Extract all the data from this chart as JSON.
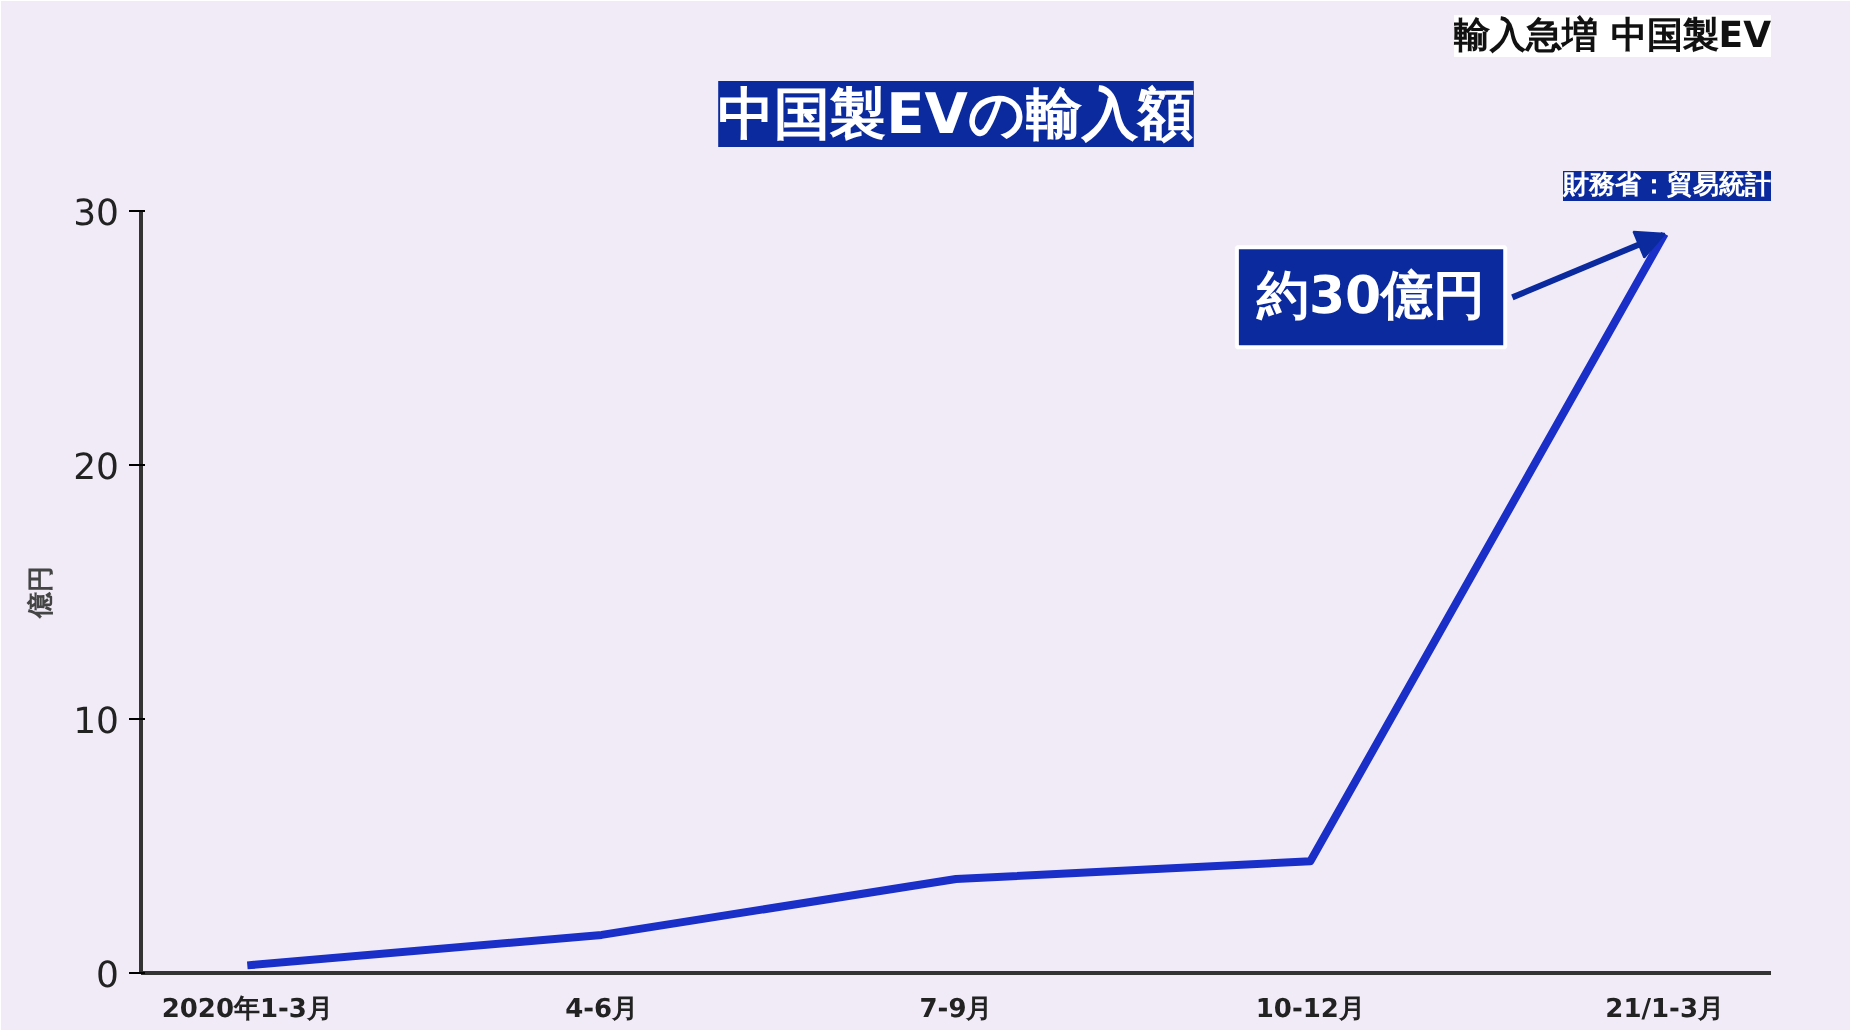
{
  "chart_data": {
    "type": "line",
    "title": "中国製EVの輸入額",
    "subtitle": "輸入急増 中国製EV",
    "ylabel": "億円",
    "categories": [
      "2020年1-3月",
      "4-6月",
      "7-9月",
      "10-12月",
      "21/1-3月"
    ],
    "series": [
      {
        "color": "#1a2fc8",
        "values": [
          0.3,
          1.5,
          3.7,
          4.4,
          29.1
        ]
      }
    ],
    "ylim": [
      0,
      30
    ],
    "yticks": [
      0,
      10,
      20,
      30
    ],
    "grid": false,
    "marker": "none",
    "line_style": "solid",
    "annotations": [
      "財務省：貿易統計",
      {
        "text": "約30億円",
        "x": "21/1-3月",
        "y": 29.1
      }
    ]
  }
}
